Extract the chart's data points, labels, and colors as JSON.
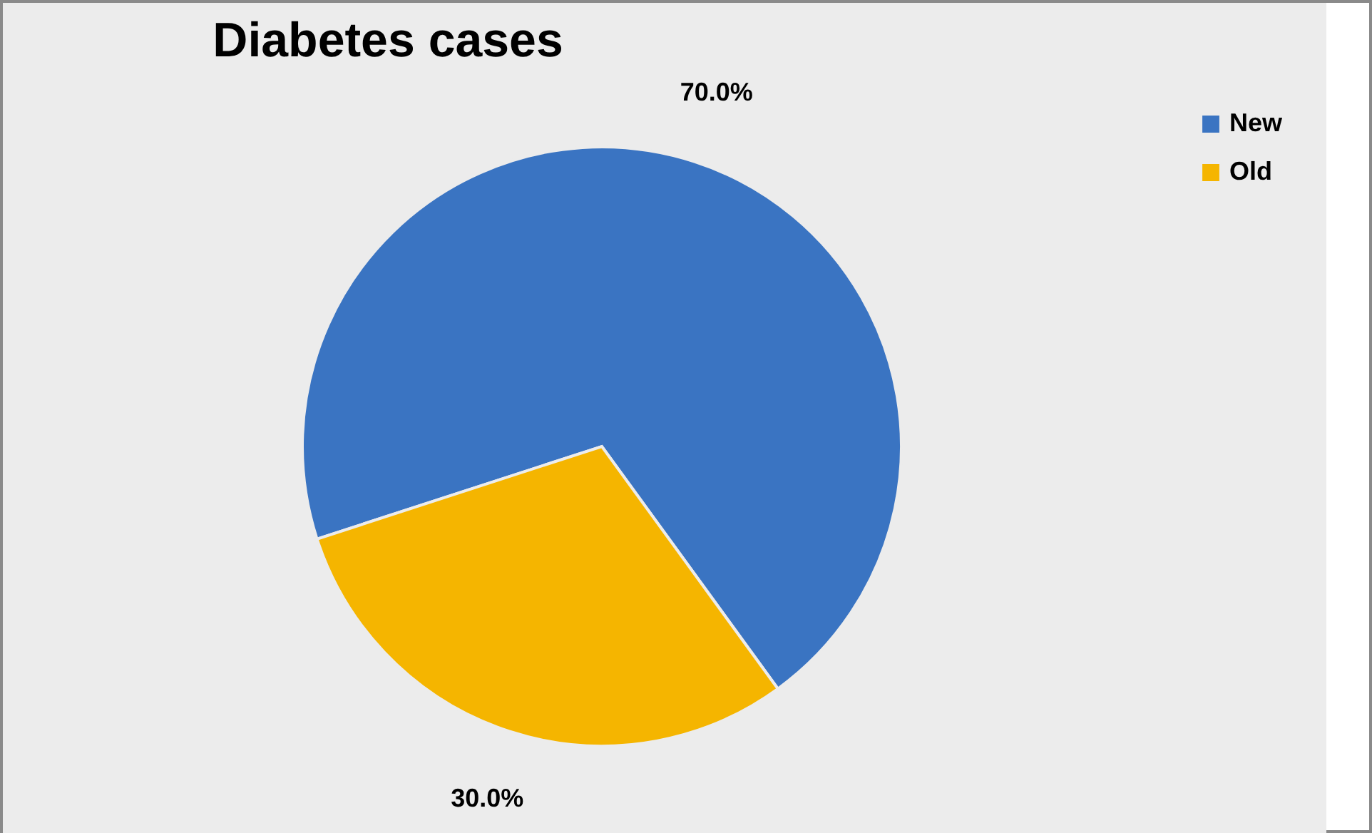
{
  "chart_data": {
    "type": "pie",
    "title": "Diabetes cases",
    "categories": [
      "New",
      "Old"
    ],
    "values": [
      70,
      30
    ],
    "colors": [
      "#3a74c2",
      "#f5b500"
    ],
    "value_labels": [
      "70.0%",
      "30.0%"
    ],
    "legend": "right"
  }
}
